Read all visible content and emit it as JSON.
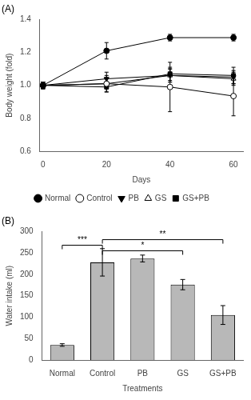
{
  "chart_data": [
    {
      "type": "line",
      "title": "(A)",
      "xlabel": "Days",
      "ylabel": "Body weight (fold)",
      "x": [
        0,
        20,
        40,
        60
      ],
      "series": [
        {
          "name": "Normal",
          "color": "#000000",
          "marker": "circle",
          "values": [
            1.0,
            1.21,
            1.29,
            1.29
          ],
          "errors": [
            0.02,
            0.05,
            0.02,
            0.02
          ]
        },
        {
          "name": "Control",
          "color": "#000000",
          "marker": "circle-open",
          "values": [
            1.0,
            1.01,
            0.99,
            0.935
          ],
          "errors": [
            0.02,
            0.05,
            0.15,
            0.12
          ]
        },
        {
          "name": "PB",
          "color": "#000000",
          "marker": "triangle-down",
          "values": [
            1.0,
            1.04,
            1.06,
            1.05
          ],
          "errors": [
            0.02,
            0.04,
            0.04,
            0.04
          ]
        },
        {
          "name": "GS",
          "color": "#000000",
          "marker": "triangle-open",
          "values": [
            1.0,
            1.01,
            1.06,
            1.04
          ],
          "errors": [
            0.02,
            0.03,
            0.04,
            0.04
          ]
        },
        {
          "name": "GS+PB",
          "color": "#000000",
          "marker": "square",
          "values": [
            1.0,
            0.99,
            1.07,
            1.06
          ],
          "errors": [
            0.02,
            0.03,
            0.04,
            0.05
          ]
        }
      ],
      "xlim": [
        -1,
        63
      ],
      "xticks": [
        0,
        20,
        40,
        60
      ],
      "ylim": [
        0.6,
        1.4
      ],
      "yticks": [
        0.6,
        0.8,
        {
          "value": 1.0,
          "label": "1.0"
        },
        1.2,
        1.4
      ],
      "grid": false,
      "legend": "bottom"
    },
    {
      "type": "bar",
      "title": "(B)",
      "xlabel": "Treatments",
      "ylabel": "Water intake (ml)",
      "categories": [
        "Normal",
        "Control",
        "PB",
        "GS",
        "GS+PB"
      ],
      "values": [
        35,
        228,
        237,
        176,
        105
      ],
      "errors": [
        3,
        32,
        8,
        12,
        22
      ],
      "color": "#b8b8b8",
      "ylim": [
        0,
        300
      ],
      "yticks": [
        0,
        50,
        100,
        150,
        200,
        250,
        300
      ],
      "grid": false,
      "annotations": [
        {
          "x1": "Normal",
          "x2": "Control",
          "y": 268,
          "label": "***"
        },
        {
          "x1": "Control",
          "x2": "GS",
          "y": 255,
          "label": "*"
        },
        {
          "x1": "Control",
          "x2": "GS+PB",
          "y": 281,
          "label": "**"
        }
      ]
    }
  ]
}
